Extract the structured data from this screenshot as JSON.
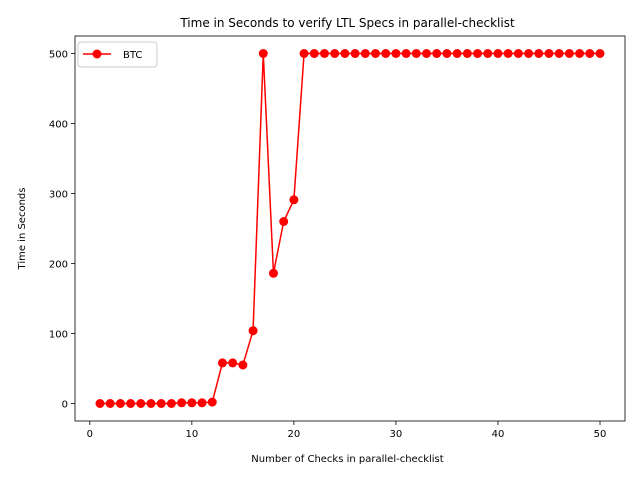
{
  "chart_data": {
    "type": "line",
    "title": "Time in Seconds to verify LTL Specs in parallel-checklist",
    "xlabel": "Number of Checks in parallel-checklist",
    "ylabel": "Time in Seconds",
    "xlim": [
      -1.45,
      52.45
    ],
    "ylim": [
      -25,
      525
    ],
    "xticks": [
      0,
      10,
      20,
      30,
      40,
      50
    ],
    "yticks": [
      0,
      100,
      200,
      300,
      400,
      500
    ],
    "grid": false,
    "legend_position": "top-left",
    "series": [
      {
        "name": "BTC",
        "color": "#ff0000",
        "marker": "circle",
        "x": [
          1,
          2,
          3,
          4,
          5,
          6,
          7,
          8,
          9,
          10,
          11,
          12,
          13,
          14,
          15,
          16,
          17,
          18,
          19,
          20,
          21,
          22,
          23,
          24,
          25,
          26,
          27,
          28,
          29,
          30,
          31,
          32,
          33,
          34,
          35,
          36,
          37,
          38,
          39,
          40,
          41,
          42,
          43,
          44,
          45,
          46,
          47,
          48,
          49,
          50
        ],
        "y": [
          0,
          0,
          0,
          0,
          0,
          0,
          0,
          0,
          1,
          1,
          1,
          2,
          58,
          58,
          55,
          104,
          500,
          186,
          260,
          291,
          500,
          500,
          500,
          500,
          500,
          500,
          500,
          500,
          500,
          500,
          500,
          500,
          500,
          500,
          500,
          500,
          500,
          500,
          500,
          500,
          500,
          500,
          500,
          500,
          500,
          500,
          500,
          500,
          500,
          500
        ]
      }
    ]
  }
}
